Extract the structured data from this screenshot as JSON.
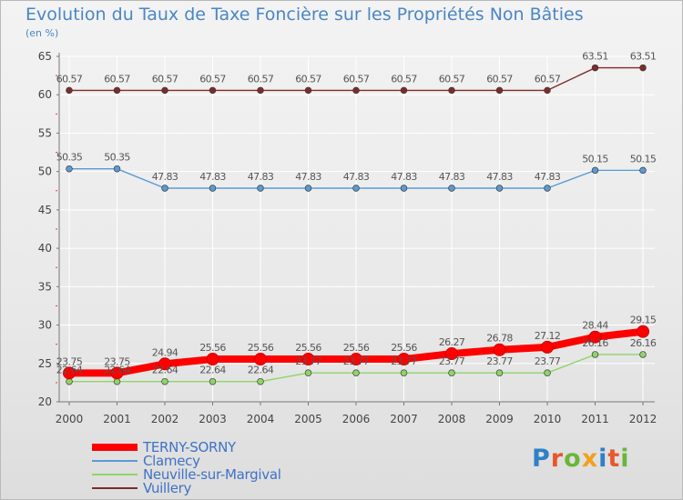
{
  "title": "Evolution du Taux de Taxe Foncière sur les Propriétés Non Bâties",
  "unit": "(en %)",
  "logo": {
    "text": "Proxiti",
    "colors": [
      "#2f80c6",
      "#e7582b",
      "#6bb63a",
      "#f2a01e",
      "#2f80c6",
      "#e7582b",
      "#6bb63a"
    ]
  },
  "chart_data": {
    "type": "line",
    "title": "Evolution du Taux de Taxe Foncière sur les Propriétés Non Bâties",
    "ylabel": "(en %)",
    "ylim": [
      20,
      65
    ],
    "yticks": [
      20,
      25,
      30,
      35,
      40,
      45,
      50,
      55,
      60,
      65
    ],
    "categories": [
      "2000",
      "2001",
      "2002",
      "2003",
      "2004",
      "2005",
      "2006",
      "2007",
      "2008",
      "2009",
      "2010",
      "2011",
      "2012"
    ],
    "series": [
      {
        "name": "TERNY-SORNY",
        "color": "#ff0000",
        "values": [
          23.75,
          23.75,
          24.94,
          25.56,
          25.56,
          25.56,
          25.56,
          25.56,
          26.27,
          26.78,
          27.12,
          28.44,
          29.15
        ],
        "labels": [
          "23.75",
          "23.75",
          "24.94",
          "25.56",
          "25.56",
          "25.56",
          "25.56",
          "25.56",
          "26.27",
          "26.78",
          "27.12",
          "28.44",
          "29.15"
        ]
      },
      {
        "name": "Clamecy",
        "color": "#5a9bd4",
        "values": [
          50.35,
          50.35,
          47.83,
          47.83,
          47.83,
          47.83,
          47.83,
          47.83,
          47.83,
          47.83,
          47.83,
          50.15,
          50.15
        ],
        "labels": [
          "50.35",
          "50.35",
          "47.83",
          "47.83",
          "47.83",
          "47.83",
          "47.83",
          "47.83",
          "47.83",
          "47.83",
          "47.83",
          "50.15",
          "50.15"
        ]
      },
      {
        "name": "Neuville-sur-Margival",
        "color": "#8fd468",
        "values": [
          22.64,
          22.64,
          22.64,
          22.64,
          22.64,
          23.77,
          23.77,
          23.77,
          23.77,
          23.77,
          23.77,
          26.16,
          26.16
        ],
        "labels": [
          "22.64",
          "22.64",
          "22.64",
          "22.64",
          "22.64",
          "23.77",
          "23.77",
          "23.77",
          "23.77",
          "23.77",
          "23.77",
          "26.16",
          "26.16"
        ]
      },
      {
        "name": "Vuillery",
        "color": "#7e2b2b",
        "values": [
          60.57,
          60.57,
          60.57,
          60.57,
          60.57,
          60.57,
          60.57,
          60.57,
          60.57,
          60.57,
          60.57,
          63.51,
          63.51
        ],
        "labels": [
          "60.57",
          "60.57",
          "60.57",
          "60.57",
          "60.57",
          "60.57",
          "60.57",
          "60.57",
          "60.57",
          "60.57",
          "60.57",
          "63.51",
          "63.51"
        ]
      }
    ]
  }
}
